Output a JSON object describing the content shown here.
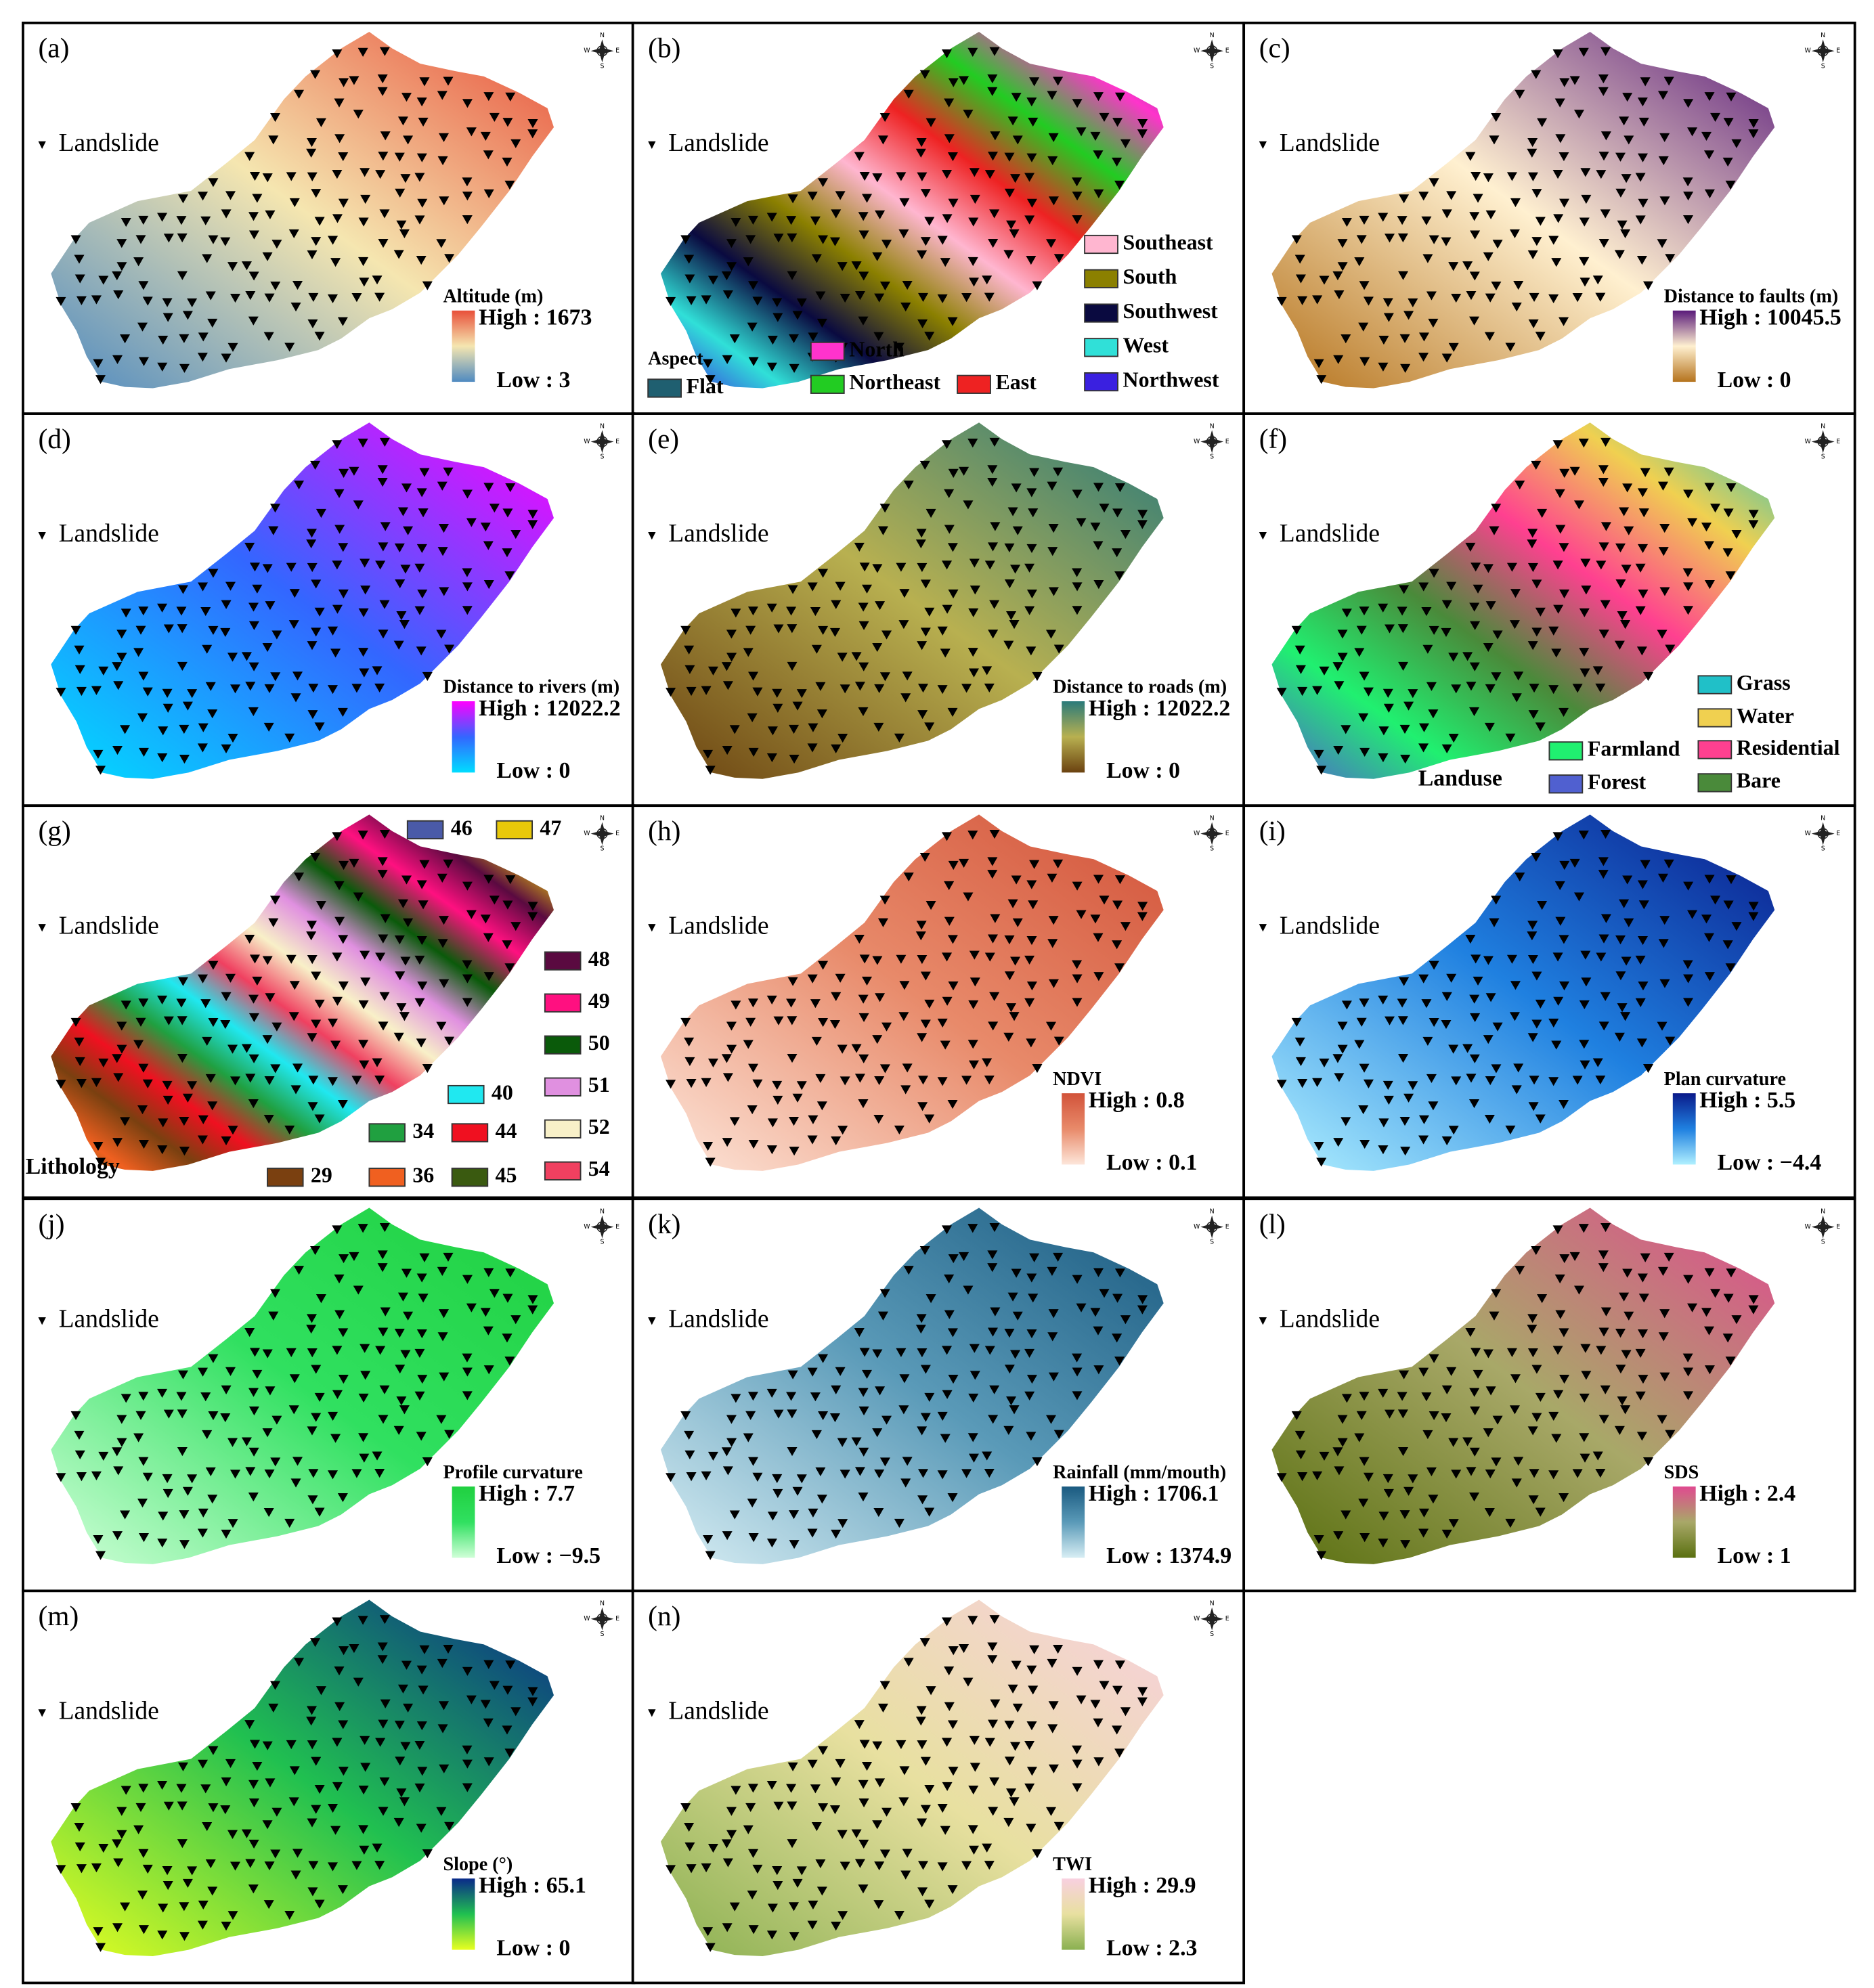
{
  "compass": [
    "N",
    "E",
    "S",
    "W"
  ],
  "panels": [
    {
      "label": "(a)",
      "landslide": "Landslide",
      "legend": {
        "title": "Altitude (m)",
        "high": "High : 1673",
        "low": "Low : 3",
        "colors": [
          "#e8503a",
          "#f5e6b0",
          "#4f8ac0"
        ]
      }
    },
    {
      "label": "(b)",
      "landslide": "Landslide",
      "legend": {
        "title": "Aspect",
        "items": [
          {
            "name": "Flat",
            "color": "#1f5f70"
          },
          {
            "name": "North",
            "color": "#ff33cc"
          },
          {
            "name": "Northeast",
            "color": "#22cc22"
          },
          {
            "name": "East",
            "color": "#ee2222"
          },
          {
            "name": "Southeast",
            "color": "#ffb6d0"
          },
          {
            "name": "South",
            "color": "#8b8000"
          },
          {
            "name": "Southwest",
            "color": "#0a0a40"
          },
          {
            "name": "West",
            "color": "#30e0d8"
          },
          {
            "name": "Northwest",
            "color": "#3a20e0"
          }
        ]
      }
    },
    {
      "label": "(c)",
      "landslide": "Landslide",
      "legend": {
        "title": "Distance to faults (m)",
        "high": "High : 10045.5",
        "low": "Low :  0",
        "colors": [
          "#5a1a7a",
          "#fff0d0",
          "#b5731d"
        ]
      }
    },
    {
      "label": "(d)",
      "landslide": "Landslide",
      "legend": {
        "title": "Distance to rivers (m)",
        "high": "High : 12022.2",
        "low": "Low : 0",
        "colors": [
          "#ff00ff",
          "#3366ff",
          "#00ddff"
        ]
      }
    },
    {
      "label": "(e)",
      "landslide": "Landslide",
      "legend": {
        "title": "Distance to roads (m)",
        "high": "High : 12022.2",
        "low": "Low : 0",
        "colors": [
          "#2a7a7a",
          "#b8b050",
          "#6b4210"
        ]
      }
    },
    {
      "label": "(f)",
      "landslide": "Landslide",
      "legend": {
        "title": "Landuse",
        "items": [
          {
            "name": "Grass",
            "color": "#20c0c8"
          },
          {
            "name": "Water",
            "color": "#f0d050"
          },
          {
            "name": "Residential",
            "color": "#ff4090"
          },
          {
            "name": "Bare",
            "color": "#4a8a3a"
          },
          {
            "name": "Farmland",
            "color": "#20f070"
          },
          {
            "name": "Forest",
            "color": "#5060d0"
          }
        ]
      }
    },
    {
      "label": "(g)",
      "landslide": "Landslide",
      "legend": {
        "title": "Lithology",
        "items": [
          {
            "name": "46",
            "color": "#4a5aa8"
          },
          {
            "name": "47",
            "color": "#e8c80a"
          },
          {
            "name": "48",
            "color": "#5a0a40"
          },
          {
            "name": "49",
            "color": "#ff1080"
          },
          {
            "name": "50",
            "color": "#0a5a0a"
          },
          {
            "name": "51",
            "color": "#e090e0"
          },
          {
            "name": "52",
            "color": "#f8f0c8"
          },
          {
            "name": "54",
            "color": "#f04060"
          },
          {
            "name": "40",
            "color": "#20e8f0"
          },
          {
            "name": "34",
            "color": "#20a040"
          },
          {
            "name": "44",
            "color": "#f01020"
          },
          {
            "name": "29",
            "color": "#7a4010"
          },
          {
            "name": "36",
            "color": "#f06020"
          },
          {
            "name": "45",
            "color": "#3a5a10"
          }
        ]
      }
    },
    {
      "label": "(h)",
      "landslide": "Landslide",
      "legend": {
        "title": "NDVI",
        "high": "High : 0.8",
        "low": "Low : 0.1",
        "colors": [
          "#d2533a",
          "#e88a6a",
          "#fde6da"
        ]
      }
    },
    {
      "label": "(i)",
      "landslide": "Landslide",
      "legend": {
        "title": "Plan curvature",
        "high": "High : 5.5",
        "low": "Low : −4.4",
        "colors": [
          "#0a1a8a",
          "#1f80e0",
          "#b0f0ff"
        ]
      }
    },
    {
      "label": "(j)",
      "landslide": "Landslide",
      "legend": {
        "title": "Profile curvature",
        "high": "High : 7.7",
        "low": "Low : −9.5",
        "colors": [
          "#20d040",
          "#30e060",
          "#d0ffd8"
        ]
      }
    },
    {
      "label": "(k)",
      "landslide": "Landslide",
      "legend": {
        "title": "Rainfall (mm/mouth)",
        "high": "High : 1706.1",
        "low": "Low : 1374.9",
        "colors": [
          "#1a5a80",
          "#5a9ab8",
          "#d8eef4"
        ]
      }
    },
    {
      "label": "(l)",
      "landslide": "Landslide",
      "legend": {
        "title": "SDS",
        "high": "High : 2.4",
        "low": "Low : 1",
        "colors": [
          "#e04a90",
          "#a8a868",
          "#5a7010"
        ]
      }
    },
    {
      "label": "(m)",
      "landslide": "Landslide",
      "legend": {
        "title": "Slope (°)",
        "high": "High : 65.1",
        "low": "Low : 0",
        "colors": [
          "#0a2a8a",
          "#20c050",
          "#e8ff20"
        ]
      }
    },
    {
      "label": "(n)",
      "landslide": "Landslide",
      "legend": {
        "title": "TWI",
        "high": "High : 29.9",
        "low": "Low : 2.3",
        "colors": [
          "#f8d0e0",
          "#e8e0a0",
          "#8ab050"
        ]
      }
    }
  ]
}
